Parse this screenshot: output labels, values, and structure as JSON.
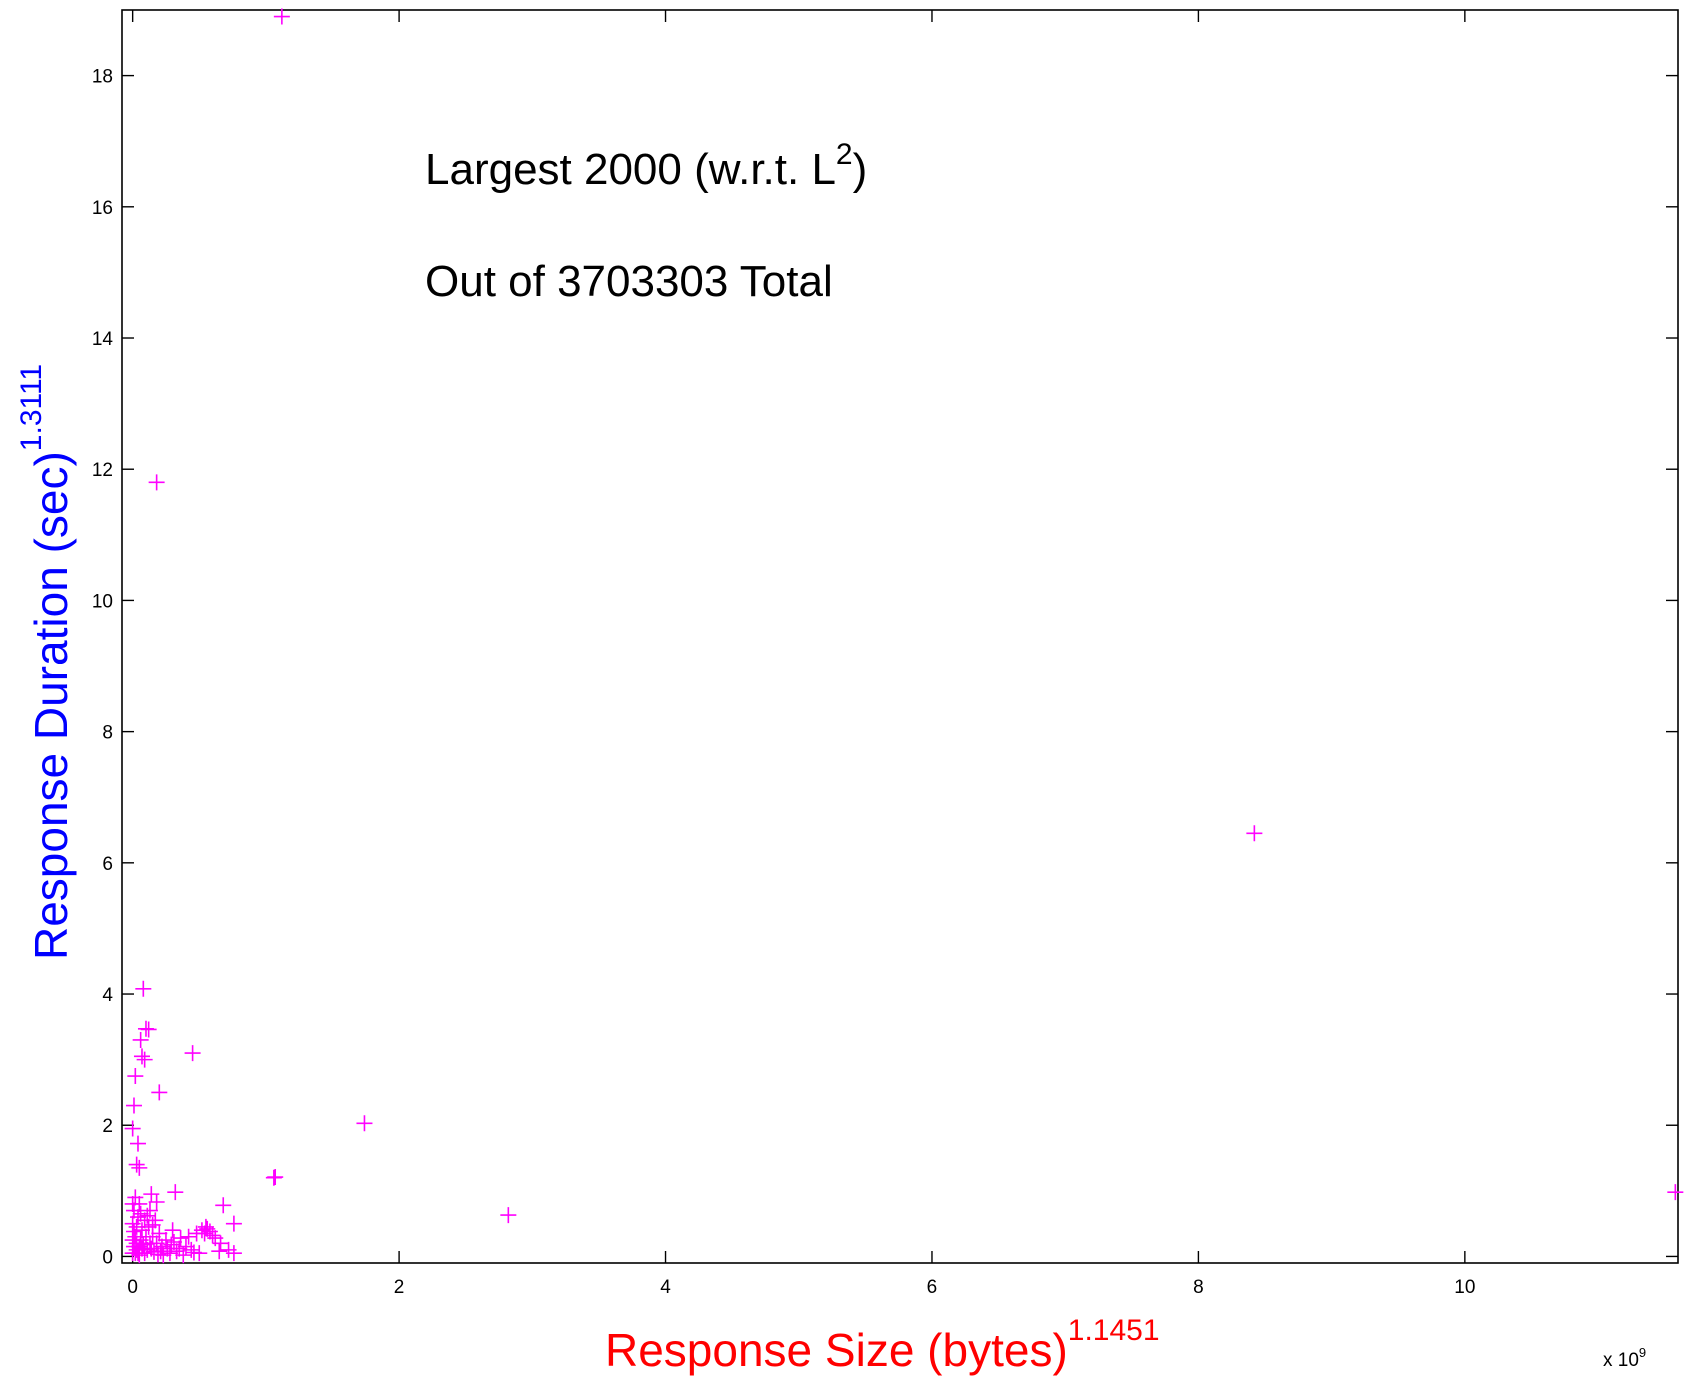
{
  "chart_data": {
    "type": "scatter",
    "annotations": {
      "line1_main": "Largest 2000 (w.r.t. L",
      "line1_sup": "2",
      "line1_close": ")",
      "line2": "Out of 3703303 Total"
    },
    "xlabel": "Response Size (bytes)",
    "xlabel_exponent": "1.1451",
    "ylabel": "Response Duration (sec)",
    "ylabel_exponent": "1.3111",
    "x_multiplier_base": "x 10",
    "x_multiplier_exp": "9",
    "xlim": [
      -0.08,
      11.6
    ],
    "ylim": [
      -0.1,
      19.0
    ],
    "xticks": [
      0,
      2,
      4,
      6,
      8,
      10
    ],
    "xtick_labels": [
      "0",
      "2",
      "4",
      "6",
      "8",
      "10"
    ],
    "yticks": [
      0,
      2,
      4,
      6,
      8,
      10,
      12,
      14,
      16,
      18
    ],
    "ytick_labels": [
      "0",
      "2",
      "4",
      "6",
      "8",
      "10",
      "12",
      "14",
      "16",
      "18"
    ],
    "grid": false,
    "marker": "+",
    "colors": {
      "points": "#ff00ff",
      "xlabel": "#ff0000",
      "ylabel": "#0000ff",
      "axes": "#000000"
    },
    "series": [
      {
        "points": [
          [
            1.12,
            18.9
          ],
          [
            0.18,
            11.8
          ],
          [
            8.42,
            6.45
          ],
          [
            11.58,
            0.98
          ],
          [
            1.74,
            2.03
          ],
          [
            2.82,
            0.63
          ],
          [
            1.07,
            1.21
          ],
          [
            1.06,
            1.2
          ],
          [
            0.45,
            3.1
          ],
          [
            0.2,
            2.5
          ],
          [
            0.08,
            4.08
          ],
          [
            0.1,
            3.47
          ],
          [
            0.12,
            3.46
          ],
          [
            0.06,
            3.3
          ],
          [
            0.07,
            3.05
          ],
          [
            0.09,
            3.0
          ],
          [
            0.02,
            2.75
          ],
          [
            0.01,
            2.3
          ],
          [
            0.0,
            1.95
          ],
          [
            0.04,
            1.72
          ],
          [
            0.03,
            1.4
          ],
          [
            0.05,
            1.35
          ],
          [
            0.32,
            0.98
          ],
          [
            0.14,
            0.95
          ],
          [
            0.18,
            0.83
          ],
          [
            0.68,
            0.78
          ],
          [
            0.76,
            0.5
          ],
          [
            0.55,
            0.45
          ],
          [
            0.52,
            0.4
          ],
          [
            0.58,
            0.38
          ],
          [
            0.48,
            0.35
          ],
          [
            0.42,
            0.3
          ],
          [
            0.62,
            0.28
          ],
          [
            0.66,
            0.2
          ],
          [
            0.72,
            0.1
          ],
          [
            0.76,
            0.05
          ],
          [
            0.65,
            0.08
          ],
          [
            0.5,
            0.05
          ],
          [
            0.35,
            0.12
          ],
          [
            0.3,
            0.4
          ],
          [
            0.25,
            0.25
          ],
          [
            0.22,
            0.15
          ],
          [
            0.28,
            0.05
          ],
          [
            0.33,
            0.08
          ],
          [
            0.38,
            0.02
          ],
          [
            0.4,
            0.15
          ],
          [
            0.2,
            0.35
          ],
          [
            0.17,
            0.55
          ],
          [
            0.15,
            0.3
          ],
          [
            0.13,
            0.2
          ],
          [
            0.11,
            0.1
          ],
          [
            0.09,
            0.05
          ],
          [
            0.07,
            0.4
          ],
          [
            0.06,
            0.65
          ],
          [
            0.05,
            0.8
          ],
          [
            0.04,
            0.6
          ],
          [
            0.03,
            0.45
          ],
          [
            0.02,
            0.3
          ],
          [
            0.01,
            0.15
          ],
          [
            0.0,
            0.05
          ],
          [
            0.0,
            0.5
          ],
          [
            0.01,
            0.7
          ],
          [
            0.02,
            0.9
          ],
          [
            0.03,
            0.2
          ],
          [
            0.04,
            0.05
          ],
          [
            0.05,
            0.15
          ],
          [
            0.06,
            0.25
          ],
          [
            0.08,
            0.18
          ],
          [
            0.1,
            0.3
          ],
          [
            0.12,
            0.45
          ],
          [
            0.14,
            0.12
          ],
          [
            0.16,
            0.07
          ],
          [
            0.18,
            0.2
          ],
          [
            0.19,
            0.03
          ],
          [
            0.21,
            0.08
          ],
          [
            0.23,
            0.02
          ],
          [
            0.26,
            0.12
          ],
          [
            0.29,
            0.18
          ],
          [
            0.31,
            0.22
          ],
          [
            0.36,
            0.28
          ],
          [
            0.44,
            0.1
          ],
          [
            0.46,
            0.06
          ],
          [
            0.54,
            0.35
          ],
          [
            0.56,
            0.42
          ],
          [
            0.6,
            0.32
          ],
          [
            0.02,
            0.05
          ],
          [
            0.03,
            0.1
          ],
          [
            0.05,
            0.02
          ],
          [
            0.07,
            0.12
          ],
          [
            0.0,
            0.25
          ],
          [
            0.01,
            0.38
          ],
          [
            0.0,
            0.8
          ],
          [
            0.09,
            0.55
          ],
          [
            0.11,
            0.62
          ],
          [
            0.13,
            0.7
          ],
          [
            0.15,
            0.48
          ]
        ]
      }
    ]
  }
}
